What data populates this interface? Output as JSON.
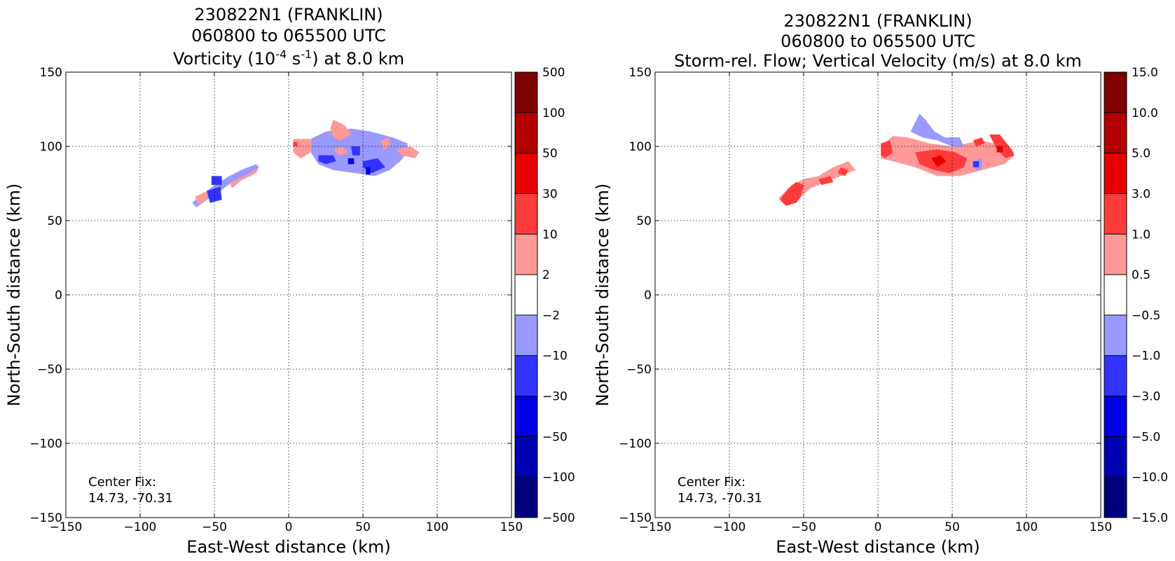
{
  "chart_data": [
    {
      "type": "heatmap",
      "title_lines": [
        "230822N1 (FRANKLIN)",
        "060800 to 065500 UTC"
      ],
      "subtitle_parts": [
        "Vorticity (10",
        "-4",
        " s",
        "-1",
        ") at 8.0 km"
      ],
      "xlabel": "East-West distance (km)",
      "ylabel": "North-South distance (km)",
      "xlim": [
        -150,
        150
      ],
      "ylim": [
        -150,
        150
      ],
      "xticks": [
        -150,
        -100,
        -50,
        0,
        50,
        100,
        150
      ],
      "yticks": [
        -150,
        -100,
        -50,
        0,
        50,
        100,
        150
      ],
      "xtick_labels": [
        "−150",
        "−100",
        "−50",
        "0",
        "50",
        "100",
        "150"
      ],
      "ytick_labels": [
        "−150",
        "−100",
        "−50",
        "0",
        "50",
        "100",
        "150"
      ],
      "grid": true,
      "annotation_lines": [
        "Center Fix:",
        "14.73, -70.31"
      ],
      "colorbar": {
        "labels": [
          "500",
          "100",
          "50",
          "30",
          "10",
          "2",
          "−2",
          "−10",
          "−30",
          "−50",
          "−100",
          "−500"
        ],
        "colors": [
          "#7f0000",
          "#b30000",
          "#e60000",
          "#ff3c3c",
          "#ff9999",
          "#ffffff",
          "#9999ff",
          "#3333ff",
          "#0000e6",
          "#0000b3",
          "#00007f"
        ]
      },
      "regions": [
        {
          "level": -2,
          "color": "#9999ff",
          "points": [
            [
              -65,
              62
            ],
            [
              -58,
              68
            ],
            [
              -48,
              75
            ],
            [
              -40,
              80
            ],
            [
              -32,
              84
            ],
            [
              -22,
              88
            ],
            [
              -20,
              86
            ],
            [
              -28,
              80
            ],
            [
              -38,
              76
            ],
            [
              -46,
              70
            ],
            [
              -55,
              64
            ],
            [
              -62,
              59
            ]
          ]
        },
        {
          "level": 2,
          "color": "#ff9999",
          "points": [
            [
              -63,
              66
            ],
            [
              -55,
              70
            ],
            [
              -55,
              64
            ],
            [
              -61,
              61
            ]
          ]
        },
        {
          "level": 2,
          "color": "#ff9999",
          "points": [
            [
              -40,
              75
            ],
            [
              -30,
              80
            ],
            [
              -20,
              86
            ],
            [
              -22,
              82
            ],
            [
              -32,
              77
            ],
            [
              -38,
              72
            ]
          ]
        },
        {
          "level": -10,
          "color": "#3333ff",
          "points": [
            [
              -55,
              70
            ],
            [
              -46,
              73
            ],
            [
              -45,
              64
            ],
            [
              -53,
              62
            ]
          ]
        },
        {
          "level": -10,
          "color": "#3333ff",
          "points": [
            [
              -52,
              80
            ],
            [
              -45,
              80
            ],
            [
              -45,
              74
            ],
            [
              -52,
              74
            ]
          ]
        },
        {
          "level": -2,
          "color": "#9999ff",
          "points": [
            [
              15,
              105
            ],
            [
              25,
              110
            ],
            [
              42,
              112
            ],
            [
              55,
              110
            ],
            [
              70,
              106
            ],
            [
              80,
              102
            ],
            [
              80,
              96
            ],
            [
              75,
              90
            ],
            [
              68,
              84
            ],
            [
              58,
              80
            ],
            [
              45,
              82
            ],
            [
              30,
              84
            ],
            [
              20,
              88
            ],
            [
              15,
              96
            ]
          ]
        },
        {
          "level": 2,
          "color": "#ff9999",
          "points": [
            [
              3,
              105
            ],
            [
              15,
              105
            ],
            [
              15,
              96
            ],
            [
              8,
              92
            ],
            [
              3,
              96
            ]
          ]
        },
        {
          "level": 2,
          "color": "#ff9999",
          "points": [
            [
              28,
              112
            ],
            [
              30,
              118
            ],
            [
              38,
              114
            ],
            [
              42,
              108
            ],
            [
              35,
              104
            ],
            [
              30,
              106
            ]
          ]
        },
        {
          "level": 2,
          "color": "#ff9999",
          "points": [
            [
              62,
              104
            ],
            [
              68,
              106
            ],
            [
              68,
              100
            ],
            [
              64,
              98
            ]
          ]
        },
        {
          "level": 2,
          "color": "#ff9999",
          "points": [
            [
              72,
              98
            ],
            [
              82,
              100
            ],
            [
              88,
              96
            ],
            [
              85,
              92
            ],
            [
              76,
              94
            ]
          ]
        },
        {
          "level": 2,
          "color": "#ff9999",
          "points": [
            [
              30,
              98
            ],
            [
              36,
              100
            ],
            [
              40,
              96
            ],
            [
              34,
              94
            ]
          ]
        },
        {
          "level": -10,
          "color": "#3333ff",
          "points": [
            [
              20,
              94
            ],
            [
              30,
              94
            ],
            [
              32,
              90
            ],
            [
              25,
              88
            ],
            [
              20,
              90
            ]
          ]
        },
        {
          "level": -10,
          "color": "#3333ff",
          "points": [
            [
              42,
              100
            ],
            [
              48,
              100
            ],
            [
              48,
              94
            ],
            [
              43,
              94
            ]
          ]
        },
        {
          "level": -10,
          "color": "#3333ff",
          "points": [
            [
              50,
              90
            ],
            [
              60,
              92
            ],
            [
              65,
              86
            ],
            [
              56,
              82
            ],
            [
              50,
              86
            ]
          ]
        },
        {
          "level": -30,
          "color": "#0000e6",
          "points": [
            [
              40,
              92
            ],
            [
              44,
              92
            ],
            [
              44,
              88
            ],
            [
              40,
              88
            ]
          ]
        },
        {
          "level": -30,
          "color": "#0000e6",
          "points": [
            [
              52,
              86
            ],
            [
              55,
              86
            ],
            [
              55,
              81
            ],
            [
              52,
              81
            ]
          ]
        },
        {
          "level": 30,
          "color": "#ff3c3c",
          "points": [
            [
              3,
              103
            ],
            [
              6,
              103
            ],
            [
              6,
              100
            ],
            [
              3,
              100
            ]
          ]
        }
      ]
    },
    {
      "type": "heatmap",
      "title_lines": [
        "230822N1 (FRANKLIN)",
        "060800 to 065500 UTC"
      ],
      "subtitle_parts": [
        "Storm-rel. Flow; Vertical Velocity (m/s) at 8.0 km"
      ],
      "xlabel": "East-West distance (km)",
      "ylabel": "North-South distance (km)",
      "xlim": [
        -150,
        150
      ],
      "ylim": [
        -150,
        150
      ],
      "xticks": [
        -150,
        -100,
        -50,
        0,
        50,
        100,
        150
      ],
      "yticks": [
        -150,
        -100,
        -50,
        0,
        50,
        100,
        150
      ],
      "xtick_labels": [
        "−150",
        "−100",
        "−50",
        "0",
        "50",
        "100",
        "150"
      ],
      "ytick_labels": [
        "−150",
        "−100",
        "−50",
        "0",
        "50",
        "100",
        "150"
      ],
      "grid": true,
      "annotation_lines": [
        "Center Fix:",
        "14.73, -70.31"
      ],
      "colorbar": {
        "labels": [
          "15.0",
          "10.0",
          "5.0",
          "3.0",
          "1.0",
          "0.5",
          "−0.5",
          "−1.0",
          "−3.0",
          "−5.0",
          "−10.0",
          "−15.0"
        ],
        "colors": [
          "#7f0000",
          "#b30000",
          "#e60000",
          "#ff3c3c",
          "#ff9999",
          "#ffffff",
          "#9999ff",
          "#3333ff",
          "#0000e6",
          "#0000b3",
          "#00007f"
        ]
      },
      "regions": [
        {
          "level": 0.5,
          "color": "#ff9999",
          "points": [
            [
              -67,
              65
            ],
            [
              -58,
              74
            ],
            [
              -50,
              78
            ],
            [
              -40,
              80
            ],
            [
              -30,
              86
            ],
            [
              -20,
              90
            ],
            [
              -15,
              84
            ],
            [
              -25,
              80
            ],
            [
              -35,
              76
            ],
            [
              -45,
              72
            ],
            [
              -52,
              66
            ],
            [
              -60,
              60
            ]
          ]
        },
        {
          "level": 1.0,
          "color": "#ff3c3c",
          "points": [
            [
              -66,
              64
            ],
            [
              -60,
              72
            ],
            [
              -55,
              76
            ],
            [
              -50,
              74
            ],
            [
              -52,
              66
            ],
            [
              -55,
              62
            ],
            [
              -62,
              60
            ]
          ]
        },
        {
          "level": 1.0,
          "color": "#ff3c3c",
          "points": [
            [
              -40,
              78
            ],
            [
              -32,
              80
            ],
            [
              -30,
              76
            ],
            [
              -38,
              74
            ]
          ]
        },
        {
          "level": 1.0,
          "color": "#ff3c3c",
          "points": [
            [
              -25,
              86
            ],
            [
              -20,
              84
            ],
            [
              -22,
              80
            ],
            [
              -27,
              82
            ]
          ]
        },
        {
          "level": 0.5,
          "color": "#ff9999",
          "points": [
            [
              2,
              100
            ],
            [
              10,
              107
            ],
            [
              20,
              106
            ],
            [
              35,
              102
            ],
            [
              50,
              100
            ],
            [
              70,
              104
            ],
            [
              85,
              100
            ],
            [
              92,
              94
            ],
            [
              85,
              88
            ],
            [
              70,
              84
            ],
            [
              55,
              80
            ],
            [
              40,
              80
            ],
            [
              25,
              86
            ],
            [
              10,
              90
            ],
            [
              2,
              92
            ]
          ]
        },
        {
          "level": 1.0,
          "color": "#ff3c3c",
          "points": [
            [
              2,
              102
            ],
            [
              8,
              104
            ],
            [
              10,
              96
            ],
            [
              5,
              92
            ],
            [
              2,
              94
            ]
          ]
        },
        {
          "level": 1.0,
          "color": "#ff3c3c",
          "points": [
            [
              25,
              96
            ],
            [
              40,
              98
            ],
            [
              52,
              96
            ],
            [
              60,
              92
            ],
            [
              58,
              86
            ],
            [
              48,
              82
            ],
            [
              38,
              84
            ],
            [
              28,
              88
            ]
          ]
        },
        {
          "level": 1.0,
          "color": "#ff3c3c",
          "points": [
            [
              48,
              106
            ],
            [
              55,
              106
            ],
            [
              55,
              102
            ],
            [
              48,
              102
            ]
          ]
        },
        {
          "level": 1.0,
          "color": "#ff3c3c",
          "points": [
            [
              64,
              104
            ],
            [
              70,
              106
            ],
            [
              72,
              102
            ],
            [
              66,
              100
            ]
          ]
        },
        {
          "level": 1.0,
          "color": "#ff3c3c",
          "points": [
            [
              75,
              108
            ],
            [
              82,
              108
            ],
            [
              90,
              98
            ],
            [
              92,
              94
            ],
            [
              86,
              92
            ],
            [
              80,
              98
            ]
          ]
        },
        {
          "level": 3.0,
          "color": "#e60000",
          "points": [
            [
              36,
              92
            ],
            [
              42,
              94
            ],
            [
              46,
              90
            ],
            [
              40,
              86
            ]
          ]
        },
        {
          "level": 3.0,
          "color": "#e60000",
          "points": [
            [
              80,
              100
            ],
            [
              84,
              100
            ],
            [
              84,
              96
            ],
            [
              80,
              96
            ]
          ]
        },
        {
          "level": -0.5,
          "color": "#9999ff",
          "points": [
            [
              22,
              110
            ],
            [
              28,
              122
            ],
            [
              32,
              118
            ],
            [
              38,
              110
            ],
            [
              45,
              106
            ],
            [
              55,
              106
            ],
            [
              58,
              100
            ],
            [
              50,
              100
            ],
            [
              40,
              104
            ],
            [
              30,
              106
            ]
          ]
        },
        {
          "level": -0.5,
          "color": "#9999ff",
          "points": [
            [
              64,
              90
            ],
            [
              70,
              92
            ],
            [
              70,
              84
            ],
            [
              66,
              84
            ]
          ]
        },
        {
          "level": -1.0,
          "color": "#3333ff",
          "points": [
            [
              64,
              90
            ],
            [
              68,
              90
            ],
            [
              68,
              86
            ],
            [
              64,
              86
            ]
          ]
        }
      ]
    }
  ]
}
